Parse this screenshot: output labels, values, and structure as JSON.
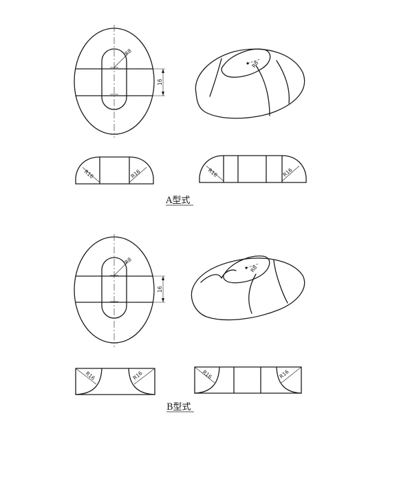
{
  "sections": [
    {
      "caption": "A型式",
      "dims": {
        "slot_radius": "R8",
        "slot_length": "16",
        "profile_radius": "R16"
      }
    },
    {
      "caption": "B型式",
      "dims": {
        "slot_radius": "R8",
        "slot_length": "16",
        "profile_radius": "R16"
      }
    }
  ]
}
